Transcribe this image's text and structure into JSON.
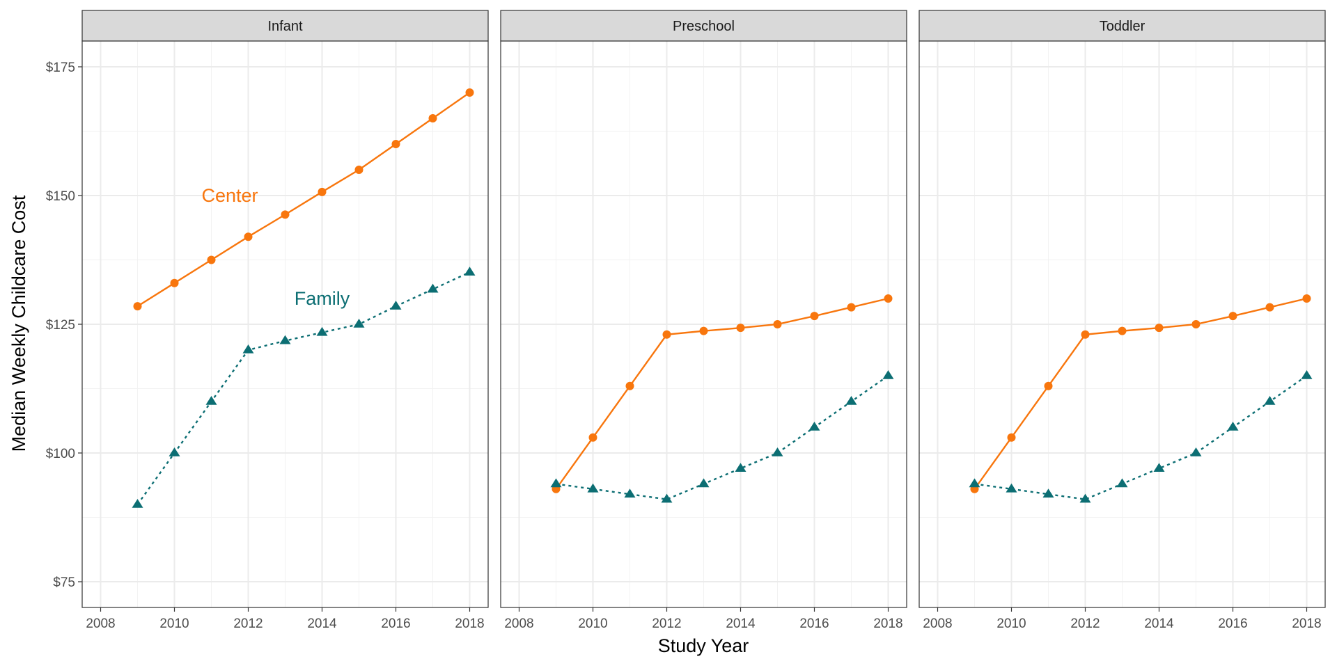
{
  "chart_data": {
    "type": "line",
    "xlabel": "Study Year",
    "ylabel": "Median Weekly Childcare Cost",
    "xlim": [
      2007.5,
      2018.5
    ],
    "ylim": [
      70,
      180
    ],
    "x_ticks": [
      2008,
      2010,
      2012,
      2014,
      2016,
      2018
    ],
    "x_tick_labels": [
      "2008",
      "2010",
      "2012",
      "2014",
      "2016",
      "2018"
    ],
    "y_ticks": [
      75,
      100,
      125,
      150,
      175
    ],
    "y_tick_labels": [
      "$75",
      "$100",
      "$125",
      "$150",
      "$175"
    ],
    "grid": true,
    "colors": {
      "center": "#f8760d",
      "family": "#0c6e73"
    },
    "annotations": [
      {
        "panel": 0,
        "text": "Center",
        "x": 2011.5,
        "y": 150,
        "series": "center"
      },
      {
        "panel": 0,
        "text": "Family",
        "x": 2014,
        "y": 130,
        "series": "family"
      }
    ],
    "panels": [
      {
        "label": "Infant",
        "x": [
          2009,
          2010,
          2011,
          2012,
          2013,
          2014,
          2015,
          2016,
          2017,
          2018
        ],
        "series": [
          {
            "key": "center",
            "marker": "circle",
            "line": "solid",
            "values": [
              128.5,
              133,
              137.5,
              142,
              146.3,
              150.7,
              155,
              160,
              165,
              170
            ]
          },
          {
            "key": "family",
            "marker": "triangle",
            "line": "dotted",
            "values": [
              90,
              100,
              110,
              120,
              121.8,
              123.4,
              125,
              128.5,
              131.8,
              135.1
            ]
          }
        ]
      },
      {
        "label": "Preschool",
        "x": [
          2009,
          2010,
          2011,
          2012,
          2013,
          2014,
          2015,
          2016,
          2017,
          2018
        ],
        "series": [
          {
            "key": "center",
            "marker": "circle",
            "line": "solid",
            "values": [
              93,
              103,
              113,
              123,
              123.7,
              124.3,
              125,
              126.6,
              128.3,
              130
            ]
          },
          {
            "key": "family",
            "marker": "triangle",
            "line": "dotted",
            "values": [
              94,
              93,
              92,
              91,
              94,
              97,
              100,
              105,
              110,
              115
            ]
          }
        ]
      },
      {
        "label": "Toddler",
        "x": [
          2009,
          2010,
          2011,
          2012,
          2013,
          2014,
          2015,
          2016,
          2017,
          2018
        ],
        "series": [
          {
            "key": "center",
            "marker": "circle",
            "line": "solid",
            "values": [
              93,
              103,
              113,
              123,
              123.7,
              124.3,
              125,
              126.6,
              128.3,
              130
            ]
          },
          {
            "key": "family",
            "marker": "triangle",
            "line": "dotted",
            "values": [
              94,
              93,
              92,
              91,
              94,
              97,
              100,
              105,
              110,
              115
            ]
          }
        ]
      }
    ]
  }
}
